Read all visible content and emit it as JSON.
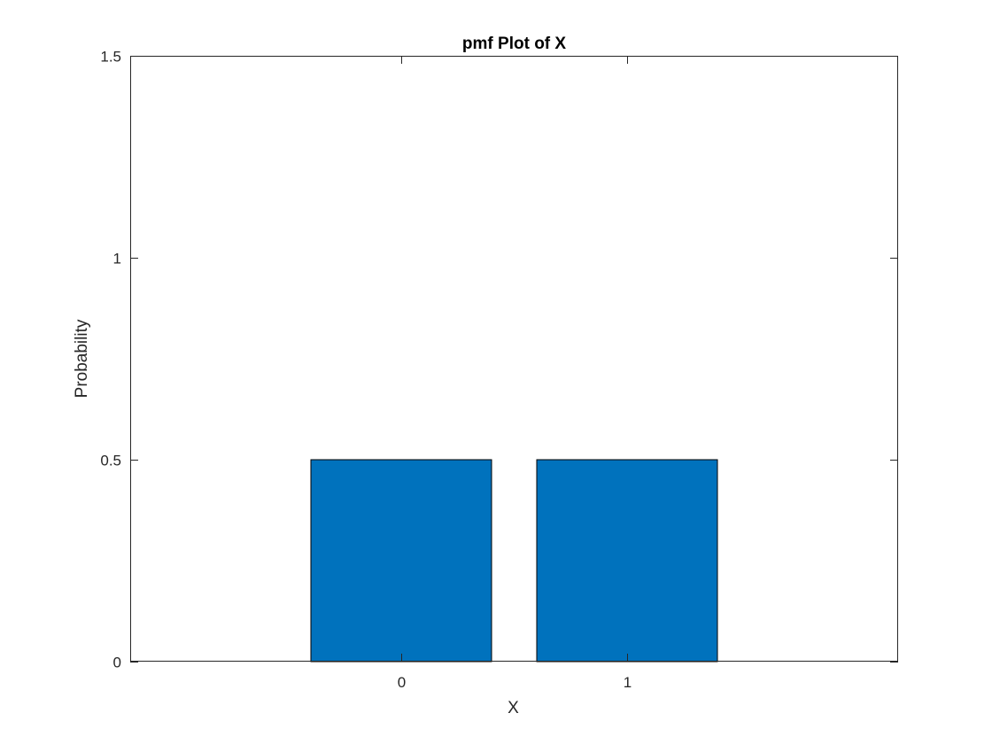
{
  "chart_data": {
    "type": "bar",
    "title": "pmf Plot of X",
    "xlabel": "X",
    "ylabel": "Probability",
    "categories": [
      "0",
      "1"
    ],
    "x": [
      0,
      1
    ],
    "values": [
      0.5,
      0.5
    ],
    "xlim": [
      -1.2,
      2.2
    ],
    "ylim": [
      0,
      1.5
    ],
    "yticks": [
      0,
      0.5,
      1,
      1.5
    ],
    "ytick_labels": [
      "0",
      "0.5",
      "1",
      "1.5"
    ],
    "xticks": [
      0,
      1
    ],
    "xtick_labels": [
      "0",
      "1"
    ],
    "bar_width": 0.8,
    "bar_color": "#0072BD",
    "grid": false,
    "box": true
  }
}
